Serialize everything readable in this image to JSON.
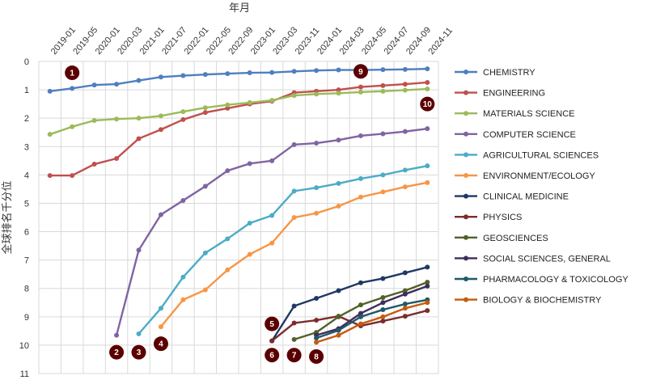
{
  "chart_data": {
    "type": "line",
    "xlabel": "年月",
    "ylabel": "全球排名千分位",
    "ylim": [
      0,
      11
    ],
    "y_reversed": true,
    "grid": true,
    "legend": "right",
    "categories": [
      "2019-01",
      "2019-05",
      "2020-01",
      "2020-03",
      "2021-01",
      "2021-07",
      "2022-01",
      "2022-05",
      "2022-09",
      "2023-01",
      "2023-03",
      "2023-11",
      "2024-01",
      "2024-03",
      "2024-05",
      "2024-07",
      "2024-09",
      "2024-11"
    ],
    "series": [
      {
        "name": "CHEMISTRY",
        "color": "#4E7FBF",
        "values": [
          1.05,
          0.95,
          0.83,
          0.8,
          0.67,
          0.55,
          0.5,
          0.46,
          0.43,
          0.4,
          0.39,
          0.35,
          0.32,
          0.3,
          0.3,
          0.29,
          0.28,
          0.26
        ]
      },
      {
        "name": "ENGINEERING",
        "color": "#C0504D",
        "values": [
          4.02,
          4.02,
          3.62,
          3.42,
          2.72,
          2.4,
          2.05,
          1.8,
          1.65,
          1.5,
          1.4,
          1.1,
          1.05,
          1.0,
          0.9,
          0.85,
          0.8,
          0.74
        ]
      },
      {
        "name": "MATERIALS SCIENCE",
        "color": "#9BBB59",
        "values": [
          2.57,
          2.3,
          2.08,
          2.03,
          2.0,
          1.92,
          1.77,
          1.63,
          1.53,
          1.45,
          1.37,
          1.2,
          1.15,
          1.12,
          1.08,
          1.05,
          1.01,
          0.97
        ]
      },
      {
        "name": "COMPUTER SCIENCE",
        "color": "#8064A2",
        "values": [
          null,
          null,
          null,
          9.65,
          6.65,
          5.4,
          4.9,
          4.4,
          3.85,
          3.6,
          3.5,
          2.93,
          2.88,
          2.77,
          2.62,
          2.55,
          2.47,
          2.37
        ]
      },
      {
        "name": "AGRICULTURAL SCIENCES",
        "color": "#4BACC6",
        "values": [
          null,
          null,
          null,
          null,
          9.6,
          8.7,
          7.6,
          6.75,
          6.25,
          5.7,
          5.43,
          4.57,
          4.45,
          4.3,
          4.13,
          4.0,
          3.83,
          3.68
        ]
      },
      {
        "name": "ENVIRONMENT/ECOLOGY",
        "color": "#F79646",
        "values": [
          null,
          null,
          null,
          null,
          null,
          9.35,
          8.4,
          8.05,
          7.35,
          6.8,
          6.4,
          5.5,
          5.35,
          5.1,
          4.78,
          4.6,
          4.42,
          4.27
        ]
      },
      {
        "name": "CLINICAL MEDICINE",
        "color": "#1F3864",
        "values": [
          null,
          null,
          null,
          null,
          null,
          null,
          null,
          null,
          null,
          null,
          9.85,
          8.62,
          8.35,
          8.08,
          7.8,
          7.65,
          7.45,
          7.25
        ]
      },
      {
        "name": "PHYSICS",
        "color": "#7B2C2C",
        "values": [
          null,
          null,
          null,
          null,
          null,
          null,
          null,
          null,
          null,
          null,
          9.85,
          9.22,
          9.12,
          8.98,
          9.32,
          9.15,
          8.98,
          8.78
        ]
      },
      {
        "name": "GEOSCIENCES",
        "color": "#4F6228",
        "values": [
          null,
          null,
          null,
          null,
          null,
          null,
          null,
          null,
          null,
          null,
          null,
          9.8,
          9.55,
          9.0,
          8.58,
          8.32,
          8.08,
          7.78
        ]
      },
      {
        "name": "SOCIAL SCIENCES, GENERAL",
        "color": "#3F2D5C",
        "values": [
          null,
          null,
          null,
          null,
          null,
          null,
          null,
          null,
          null,
          null,
          null,
          null,
          9.65,
          9.42,
          8.88,
          8.5,
          8.2,
          7.92
        ]
      },
      {
        "name": "PHARMACOLOGY & TOXICOLOGY",
        "color": "#215968",
        "values": [
          null,
          null,
          null,
          null,
          null,
          null,
          null,
          null,
          null,
          null,
          null,
          null,
          9.75,
          9.48,
          9.0,
          8.75,
          8.55,
          8.4
        ]
      },
      {
        "name": "BIOLOGY & BIOCHEMISTRY",
        "color": "#C55A11",
        "values": [
          null,
          null,
          null,
          null,
          null,
          null,
          null,
          null,
          null,
          null,
          null,
          null,
          9.9,
          9.65,
          9.25,
          9.0,
          8.7,
          8.5
        ]
      }
    ],
    "annotations": [
      {
        "label": "1",
        "x": "2019-05",
        "y": 0.4
      },
      {
        "label": "2",
        "x": "2020-03",
        "y": 10.25
      },
      {
        "label": "3",
        "x": "2021-01",
        "y": 10.25
      },
      {
        "label": "4",
        "x": "2021-07",
        "y": 9.95
      },
      {
        "label": "5",
        "x": "2023-03",
        "y": 9.25
      },
      {
        "label": "6",
        "x": "2023-03",
        "y": 10.35
      },
      {
        "label": "7",
        "x": "2023-11",
        "y": 10.35
      },
      {
        "label": "8",
        "x": "2024-01",
        "y": 10.4
      },
      {
        "label": "9",
        "x": "2024-05",
        "y": 0.35
      },
      {
        "label": "10",
        "x": "2024-11",
        "y": 1.5
      }
    ]
  }
}
